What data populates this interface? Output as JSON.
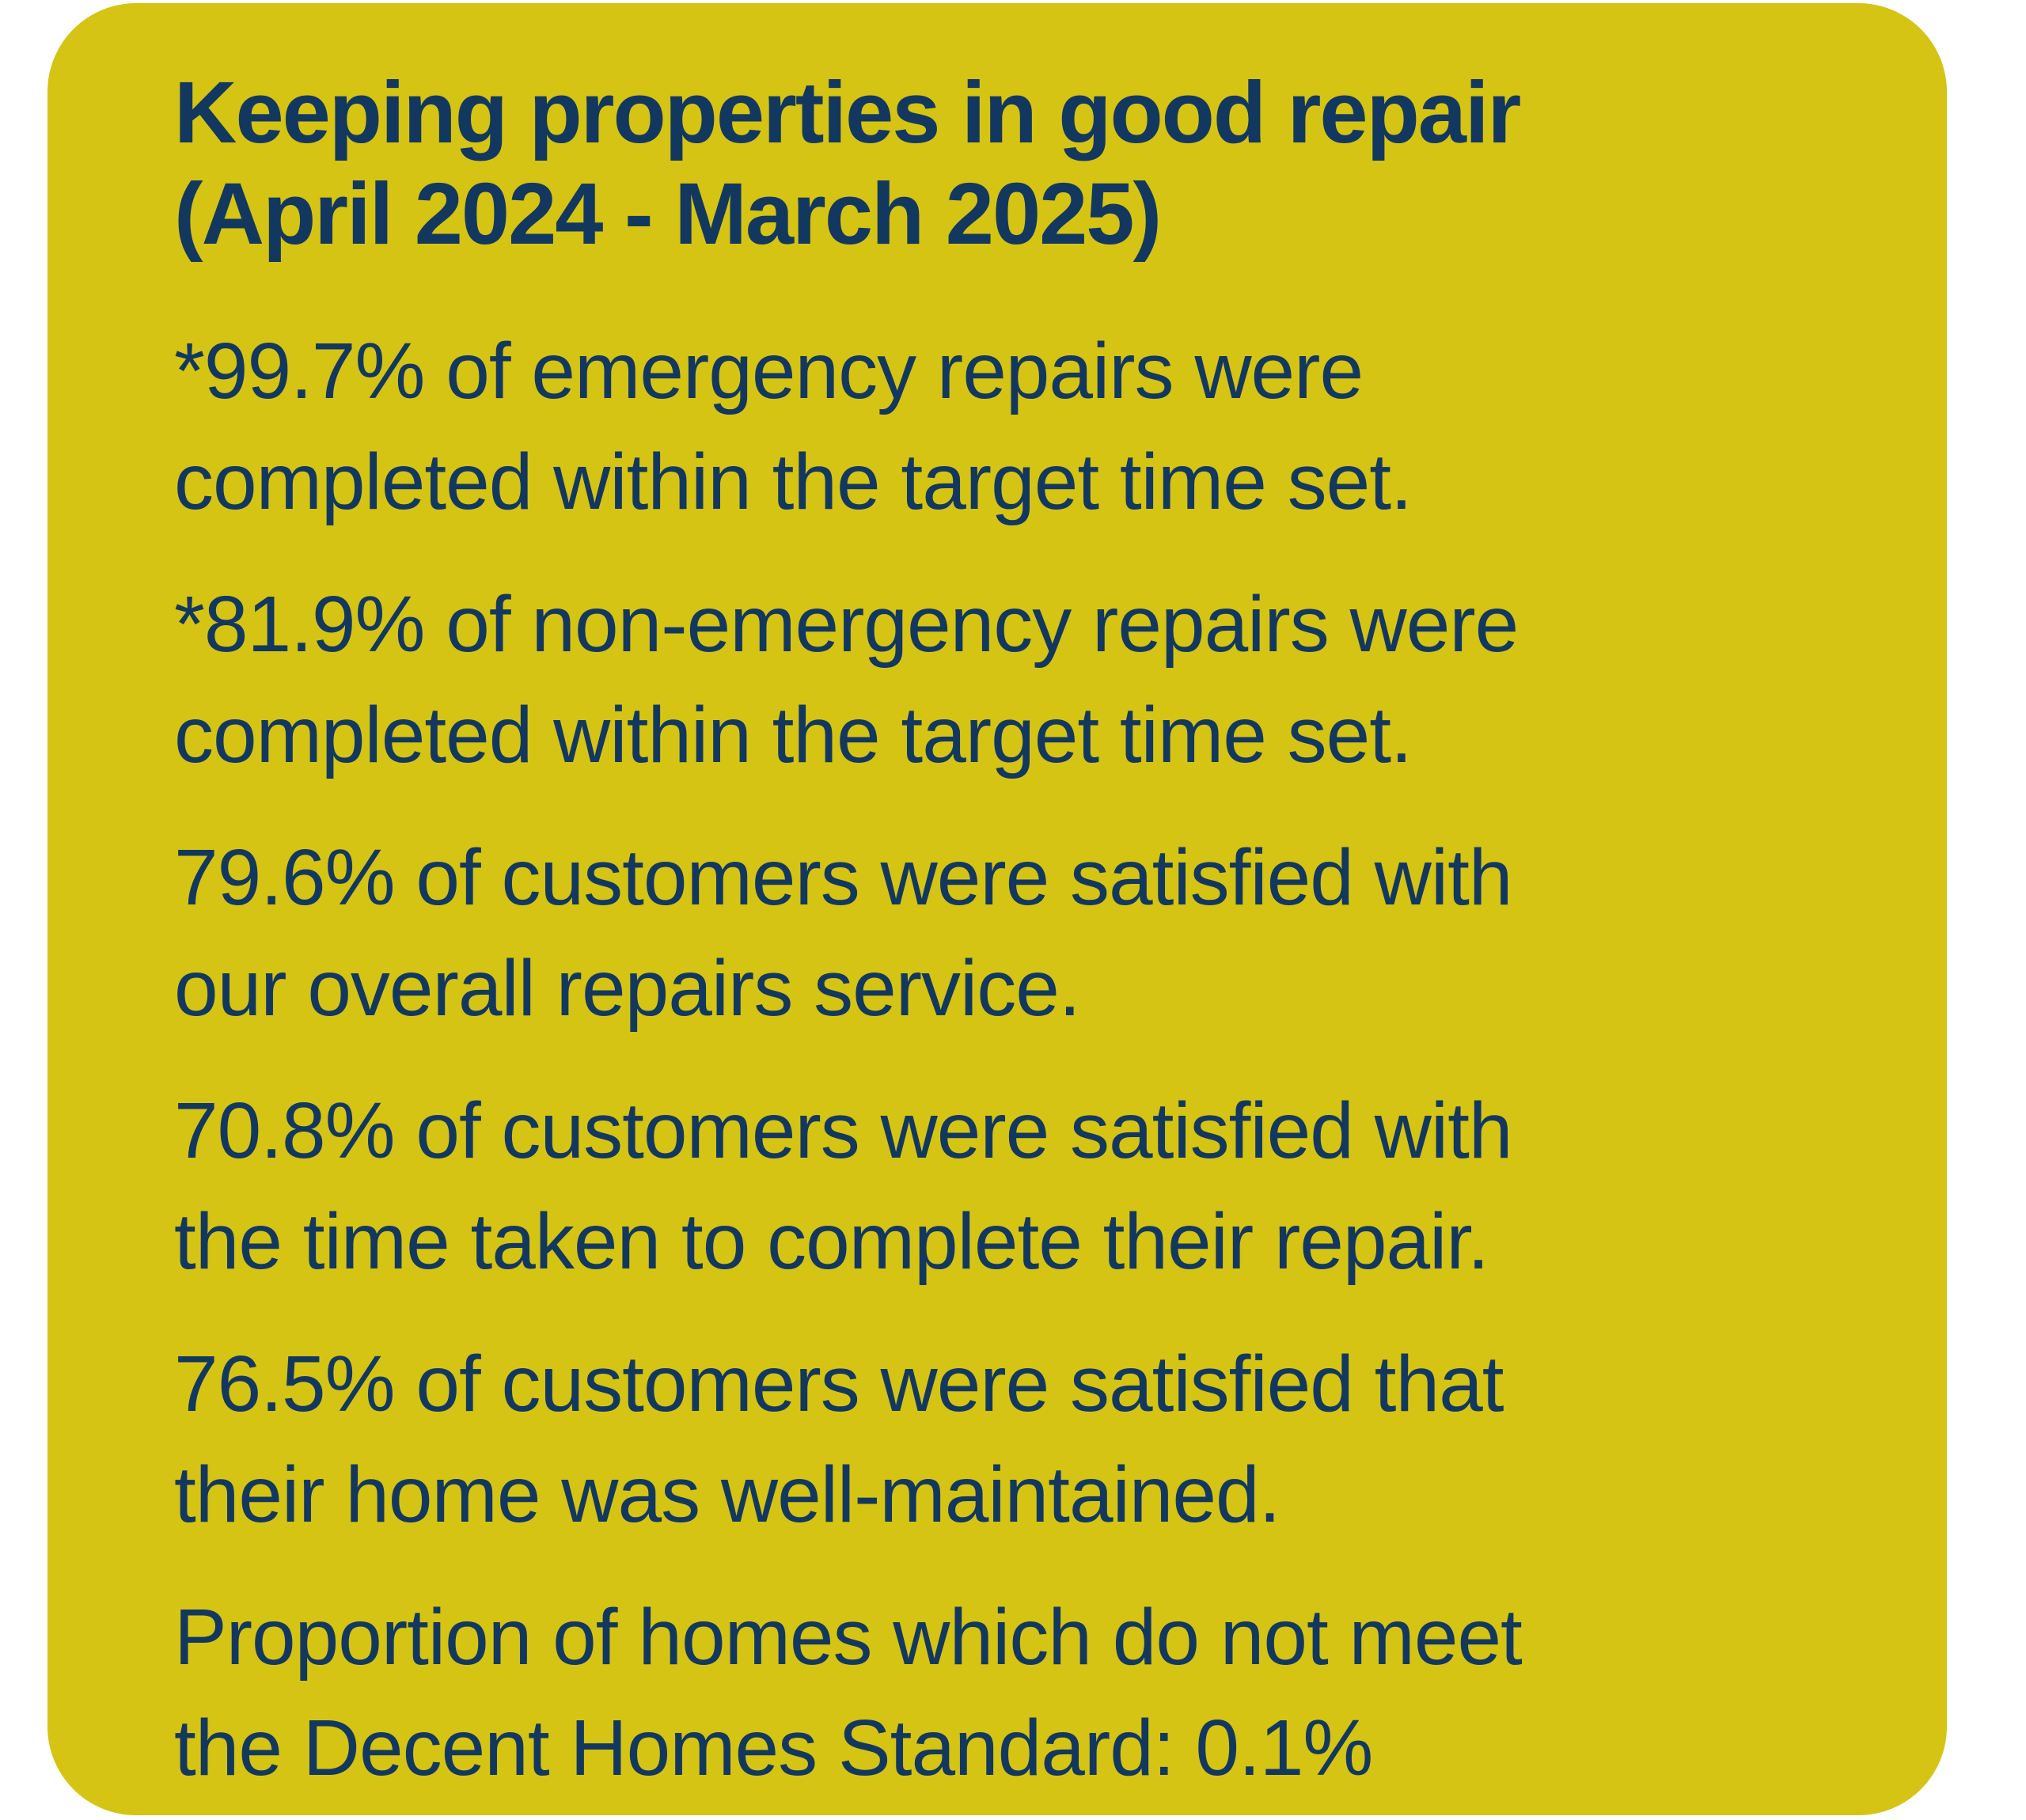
{
  "card": {
    "background_color": "#d5c413",
    "text_color": "#13385f",
    "title": {
      "line1": "Keeping properties in good repair",
      "line2": "(April 2024 - March 2025)"
    },
    "stats": [
      {
        "line1": "*99.7% of emergency repairs were",
        "line2": "completed within the target time set."
      },
      {
        "line1": "*81.9% of non-emergency repairs were",
        "line2": "completed within the target time set."
      },
      {
        "line1": "79.6% of customers were satisfied with",
        "line2": "our overall repairs service."
      },
      {
        "line1": "70.8% of customers were satisfied with",
        "line2": "the time taken to complete their repair."
      },
      {
        "line1": "76.5% of customers were satisfied that",
        "line2": "their home was well-maintained."
      },
      {
        "line1": "Proportion of homes which do not meet",
        "line2": "the Decent Homes Standard: 0.1%"
      }
    ]
  }
}
